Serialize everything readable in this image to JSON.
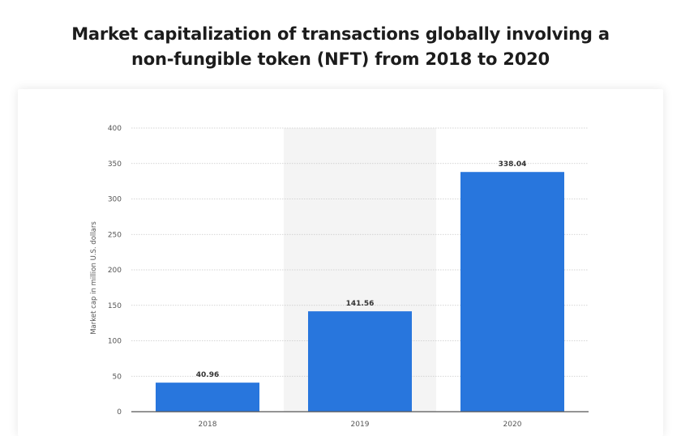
{
  "header": {
    "title_line1": "Market capitalization of transactions globally involving a",
    "title_line2": "non-fungible token (NFT) from 2018 to 2020"
  },
  "colors": {
    "bar": "#2876dd",
    "grid": "#c8c8c8",
    "hover_band": "#f4f4f4",
    "axis": "#555555"
  },
  "chart_data": {
    "type": "bar",
    "title": "Market capitalization of transactions globally involving a non-fungible token (NFT) from 2018 to 2020",
    "categories": [
      "2018",
      "2019",
      "2020"
    ],
    "values": [
      40.96,
      141.56,
      338.04
    ],
    "value_labels": [
      "40.96",
      "141.56",
      "338.04"
    ],
    "xlabel": "",
    "ylabel": "Market cap in million U.S. dollars",
    "ylim": [
      0,
      400
    ],
    "yticks": [
      0,
      50,
      100,
      150,
      200,
      250,
      300,
      350,
      400
    ],
    "grid": true,
    "highlighted_category": "2019"
  }
}
